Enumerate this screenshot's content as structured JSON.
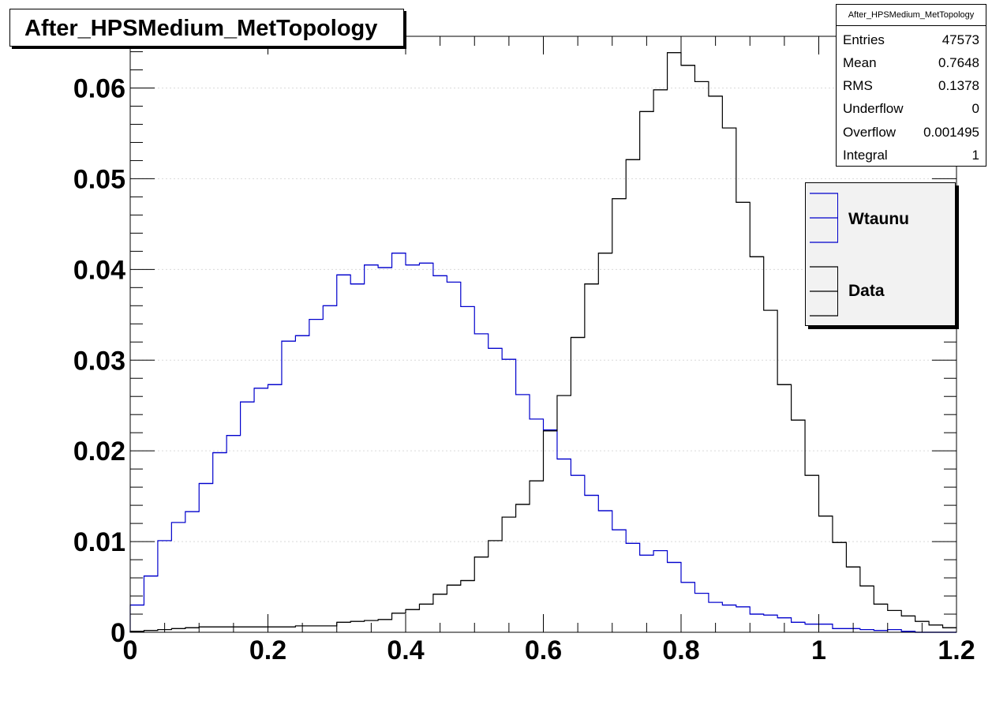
{
  "title": "After_HPSMedium_MetTopology",
  "stats": {
    "title": "After_HPSMedium_MetTopology",
    "rows": [
      {
        "key": "Entries",
        "value": "47573"
      },
      {
        "key": "Mean",
        "value": "0.7648"
      },
      {
        "key": "RMS",
        "value": "0.1378"
      },
      {
        "key": "Underflow",
        "value": "0"
      },
      {
        "key": "Overflow",
        "value": "0.001495"
      },
      {
        "key": "Integral",
        "value": "1"
      }
    ]
  },
  "legend": {
    "entries": [
      {
        "label": "Wtaunu",
        "color": "#0000cc"
      },
      {
        "label": "Data",
        "color": "#000000"
      }
    ]
  },
  "colors": {
    "wtaunu": "#0000cc",
    "data": "#000000",
    "grid": "#d9d9d9"
  },
  "chart_data": {
    "type": "line",
    "style": "step-histogram",
    "title": "After_HPSMedium_MetTopology",
    "xlabel": "",
    "ylabel": "",
    "xlim": [
      0,
      1.2
    ],
    "ylim": [
      0,
      0.0657
    ],
    "x_ticks": [
      "0",
      "0.2",
      "0.4",
      "0.6",
      "0.8",
      "1",
      "1.2"
    ],
    "x_tick_values": [
      0,
      0.2,
      0.4,
      0.6,
      0.8,
      1.0,
      1.2
    ],
    "y_ticks": [
      "0",
      "0.01",
      "0.02",
      "0.03",
      "0.04",
      "0.05",
      "0.06"
    ],
    "y_tick_values": [
      0,
      0.01,
      0.02,
      0.03,
      0.04,
      0.05,
      0.06
    ],
    "grid": "horizontal dotted",
    "legend_position": "top-right",
    "bin_width": 0.02,
    "x_start": 0,
    "series": [
      {
        "name": "Wtaunu",
        "color": "#0000cc",
        "values": [
          0.003,
          0.0062,
          0.0101,
          0.0121,
          0.0133,
          0.0164,
          0.0198,
          0.0217,
          0.0254,
          0.0269,
          0.0273,
          0.0321,
          0.0327,
          0.0345,
          0.036,
          0.0394,
          0.0384,
          0.0405,
          0.0402,
          0.0418,
          0.0405,
          0.0407,
          0.0393,
          0.0386,
          0.0359,
          0.0329,
          0.0313,
          0.0301,
          0.0262,
          0.0235,
          0.0223,
          0.0191,
          0.0173,
          0.0151,
          0.0134,
          0.0113,
          0.0098,
          0.0085,
          0.009,
          0.0077,
          0.0055,
          0.0043,
          0.0033,
          0.003,
          0.0028,
          0.002,
          0.0019,
          0.0016,
          0.0011,
          0.0009,
          0.0009,
          0.0004,
          0.0004,
          0.0003,
          0.0002,
          0.0003,
          0.0001,
          0.0,
          0.0,
          0.0
        ]
      },
      {
        "name": "Data",
        "color": "#000000",
        "values": [
          0.0001,
          0.0002,
          0.0003,
          0.0004,
          0.0005,
          0.0006,
          0.0006,
          0.0006,
          0.0006,
          0.0006,
          0.0006,
          0.0006,
          0.0007,
          0.0007,
          0.0007,
          0.0011,
          0.0012,
          0.0013,
          0.0014,
          0.0021,
          0.0025,
          0.0031,
          0.0042,
          0.0052,
          0.0057,
          0.0083,
          0.0101,
          0.0127,
          0.0141,
          0.0167,
          0.0222,
          0.0261,
          0.0325,
          0.0384,
          0.0418,
          0.0478,
          0.0521,
          0.0574,
          0.0598,
          0.0639,
          0.0625,
          0.0607,
          0.0591,
          0.0556,
          0.0474,
          0.0414,
          0.0355,
          0.0273,
          0.0234,
          0.0173,
          0.0128,
          0.0099,
          0.0072,
          0.0051,
          0.0031,
          0.0024,
          0.0018,
          0.0012,
          0.0008,
          0.0005
        ]
      }
    ]
  }
}
